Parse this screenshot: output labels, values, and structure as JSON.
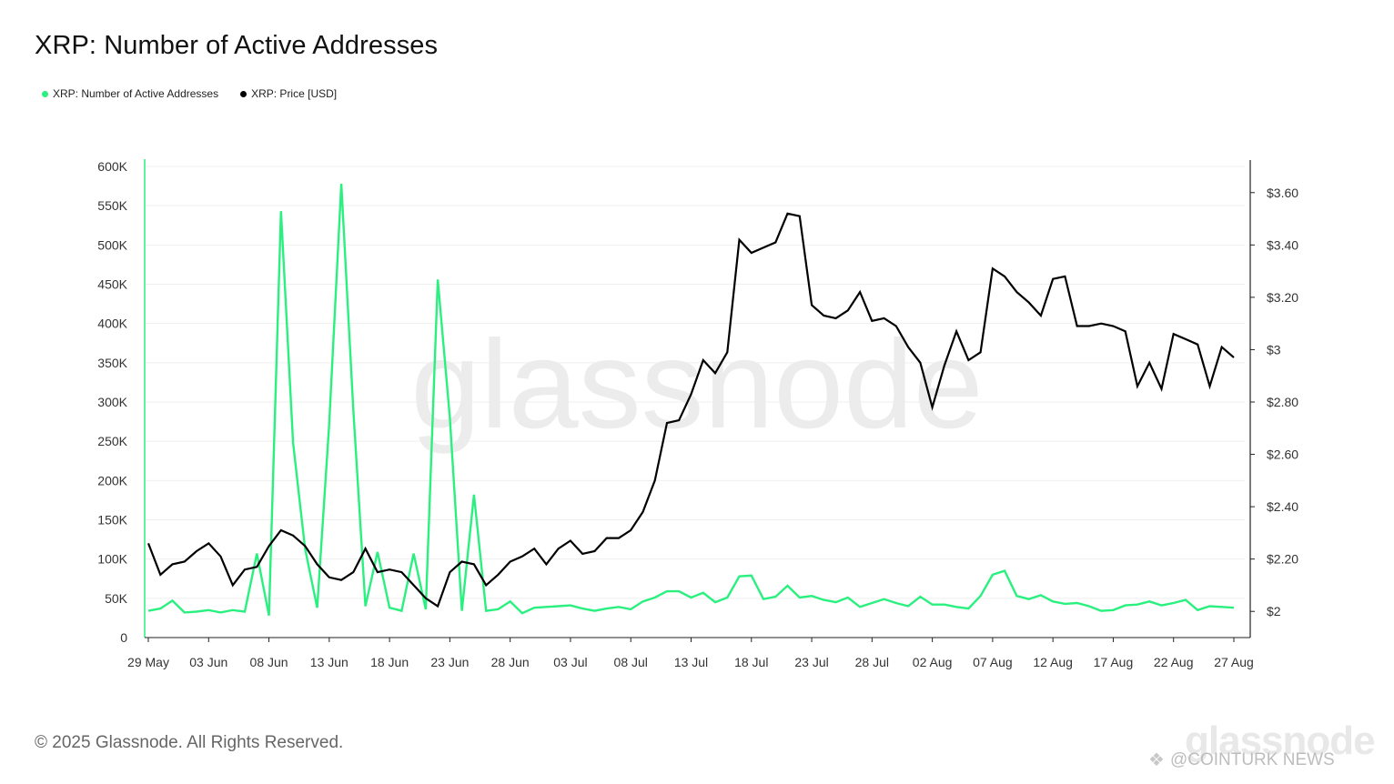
{
  "title": "XRP: Number of Active Addresses",
  "legend": [
    {
      "label": "XRP: Number of Active Addresses",
      "color": "#2af07f"
    },
    {
      "label": "XRP: Price [USD]",
      "color": "#000000"
    }
  ],
  "watermark_center": "glassnode",
  "footer": {
    "copyright": "© 2025 Glassnode. All Rights Reserved.",
    "brand_logo": "glassnode",
    "source_watermark": "@COINTURK NEWS",
    "source_icon": "binance-diamond-icon"
  },
  "chart_data": {
    "type": "line",
    "x_tick_labels": [
      "29 May",
      "03 Jun",
      "08 Jun",
      "13 Jun",
      "18 Jun",
      "23 Jun",
      "28 Jun",
      "03 Jul",
      "08 Jul",
      "13 Jul",
      "18 Jul",
      "23 Jul",
      "28 Jul",
      "02 Aug",
      "07 Aug",
      "12 Aug",
      "17 Aug",
      "22 Aug",
      "27 Aug"
    ],
    "x_start": "2025-05-29",
    "x_end": "2025-08-27",
    "y_left": {
      "ylim": [
        0,
        600000
      ],
      "ticks": [
        0,
        50000,
        100000,
        150000,
        200000,
        250000,
        300000,
        350000,
        400000,
        450000,
        500000,
        550000,
        600000
      ],
      "tick_labels": [
        "0",
        "50K",
        "100K",
        "150K",
        "200K",
        "250K",
        "300K",
        "350K",
        "400K",
        "450K",
        "500K",
        "550K",
        "600K"
      ]
    },
    "y_right": {
      "ylim": [
        1.9,
        3.7
      ],
      "ticks": [
        2.0,
        2.2,
        2.4,
        2.6,
        2.8,
        3.0,
        3.2,
        3.4,
        3.6
      ],
      "tick_labels": [
        "$2",
        "$2.20",
        "$2.40",
        "$2.60",
        "$2.80",
        "$3",
        "$3.20",
        "$3.40",
        "$3.60"
      ]
    },
    "grid": true,
    "series": [
      {
        "name": "XRP: Number of Active Addresses",
        "axis": "left",
        "color": "#2af07f",
        "values": [
          34000,
          37000,
          47000,
          32000,
          33000,
          35000,
          32000,
          35000,
          33000,
          107000,
          28000,
          543000,
          248000,
          113000,
          38000,
          272000,
          578000,
          290000,
          40000,
          109000,
          38000,
          34000,
          107000,
          36000,
          456000,
          280000,
          34000,
          182000,
          34000,
          36000,
          46000,
          31000,
          38000,
          39000,
          40000,
          41000,
          37000,
          34000,
          37000,
          39000,
          36000,
          46000,
          51000,
          59000,
          59000,
          51000,
          57000,
          45000,
          51000,
          78000,
          79000,
          49000,
          52000,
          66000,
          51000,
          53000,
          48000,
          45000,
          51000,
          39000,
          44000,
          49000,
          44000,
          40000,
          52000,
          42000,
          42000,
          39000,
          37000,
          53000,
          80000,
          85000,
          53000,
          49000,
          54000,
          46000,
          43000,
          44000,
          40000,
          34000,
          35000,
          41000,
          42000,
          46000,
          41000,
          44000,
          48000,
          35000,
          40000,
          39000,
          38000
        ]
      },
      {
        "name": "XRP: Price [USD]",
        "axis": "right",
        "color": "#000000",
        "values": [
          2.26,
          2.14,
          2.18,
          2.19,
          2.23,
          2.26,
          2.21,
          2.1,
          2.16,
          2.17,
          2.25,
          2.31,
          2.29,
          2.25,
          2.18,
          2.13,
          2.12,
          2.15,
          2.24,
          2.15,
          2.16,
          2.15,
          2.1,
          2.05,
          2.02,
          2.15,
          2.19,
          2.18,
          2.1,
          2.14,
          2.19,
          2.21,
          2.24,
          2.18,
          2.24,
          2.27,
          2.22,
          2.23,
          2.28,
          2.28,
          2.31,
          2.38,
          2.5,
          2.72,
          2.73,
          2.83,
          2.96,
          2.91,
          2.99,
          3.42,
          3.37,
          3.39,
          3.41,
          3.52,
          3.51,
          3.17,
          3.13,
          3.12,
          3.15,
          3.22,
          3.11,
          3.12,
          3.09,
          3.01,
          2.95,
          2.78,
          2.94,
          3.07,
          2.96,
          2.99,
          3.31,
          3.28,
          3.22,
          3.18,
          3.13,
          3.27,
          3.28,
          3.09,
          3.09,
          3.1,
          3.09,
          3.07,
          2.86,
          2.95,
          2.85,
          3.06,
          3.04,
          3.02,
          2.86,
          3.01,
          2.97
        ]
      }
    ]
  }
}
